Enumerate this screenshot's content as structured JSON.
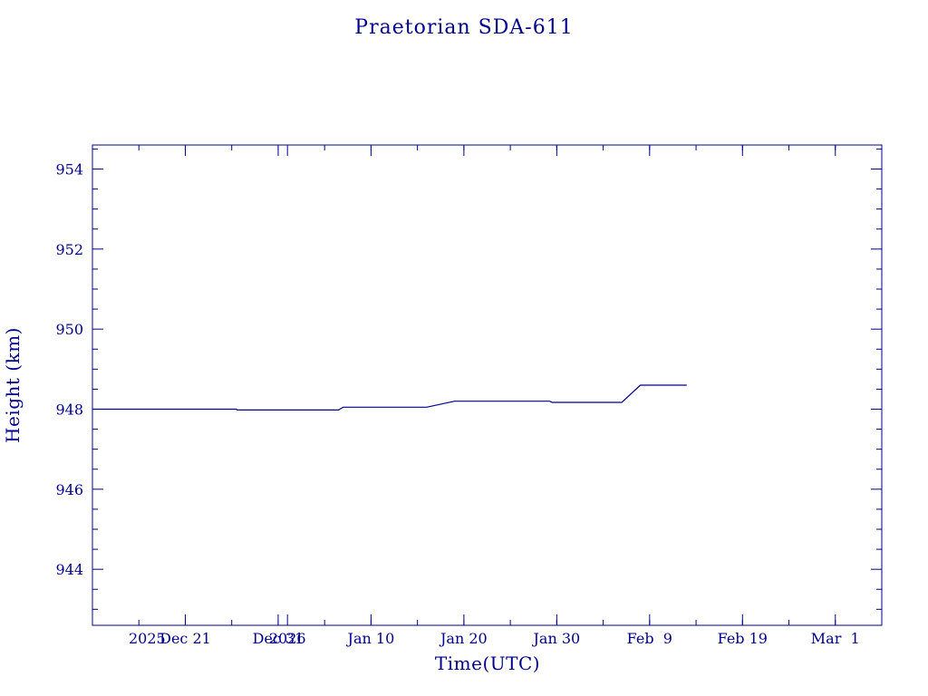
{
  "chart_data": {
    "type": "line",
    "title": "Praetorian SDA-611",
    "xlabel": "Time(UTC)",
    "ylabel": "Height (km)",
    "x_axis_type": "date",
    "xlim": [
      "2025-12-11",
      "2026-03-06"
    ],
    "ylim": [
      942.6,
      954.6
    ],
    "grid": false,
    "x_ticks": [
      {
        "date": "2025-12-11",
        "label": "2025"
      },
      {
        "date": "2025-12-21",
        "label": "Dec 21"
      },
      {
        "date": "2025-12-31",
        "label": "Dec 31"
      },
      {
        "date": "2026-01-01",
        "label": "2026"
      },
      {
        "date": "2026-01-10",
        "label": "Jan 10"
      },
      {
        "date": "2026-01-20",
        "label": "Jan 20"
      },
      {
        "date": "2026-01-30",
        "label": "Jan 30"
      },
      {
        "date": "2026-02-09",
        "label": "Feb  9"
      },
      {
        "date": "2026-02-19",
        "label": "Feb 19"
      },
      {
        "date": "2026-03-01",
        "label": "Mar  1"
      }
    ],
    "y_ticks": [
      944,
      946,
      948,
      950,
      952,
      954
    ],
    "color": "#00008b",
    "series": [
      {
        "x": [
          "2025-12-11T00:00",
          "2025-12-26T12:00",
          "2025-12-26T14:00",
          "2026-01-06T12:00",
          "2026-01-07T00:00",
          "2026-01-16T00:00",
          "2026-01-19T00:00",
          "2026-01-29T06:00",
          "2026-01-29T12:00",
          "2026-02-06T00:00",
          "2026-02-08T00:00",
          "2026-02-13T00:00"
        ],
        "y": [
          948.0,
          948.0,
          947.98,
          947.98,
          948.05,
          948.05,
          948.2,
          948.2,
          948.17,
          948.17,
          948.6,
          948.6
        ]
      }
    ]
  }
}
